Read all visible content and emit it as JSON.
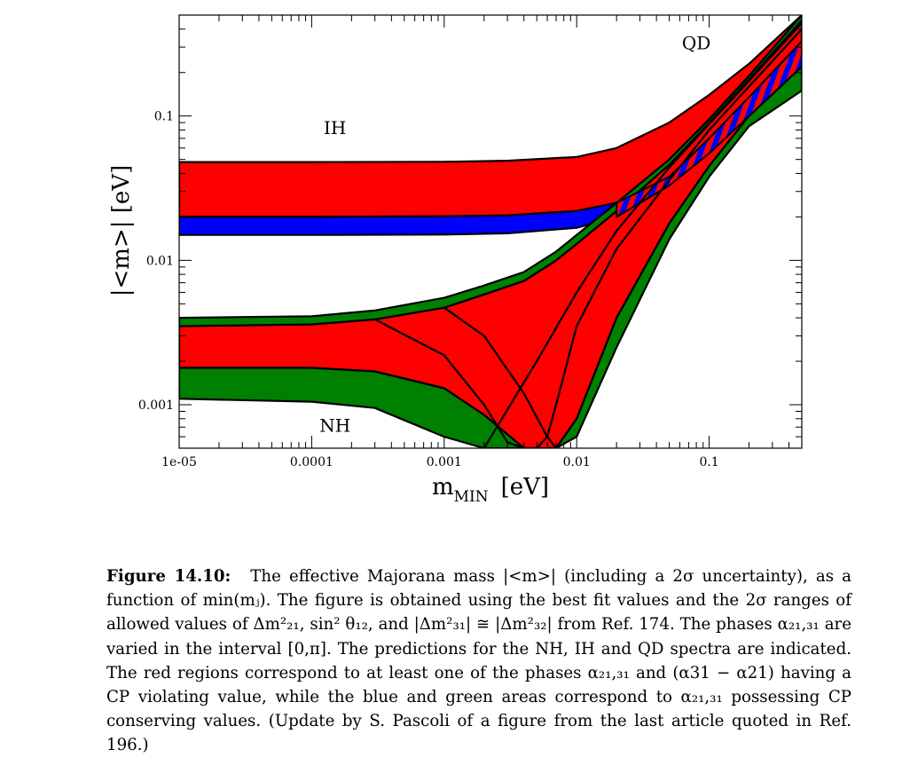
{
  "chart_data": {
    "type": "area",
    "xlabel_main": "m",
    "xlabel_sub": "MIN",
    "xlabel_unit": "[eV]",
    "ylabel": "|<m>|  [eV]",
    "x_scale": "log",
    "y_scale": "log",
    "xlim": [
      1e-05,
      0.5
    ],
    "ylim": [
      0.0005,
      0.5
    ],
    "x_ticks": [
      {
        "value": 1e-05,
        "label": "1e-05"
      },
      {
        "value": 0.0001,
        "label": "0.0001"
      },
      {
        "value": 0.001,
        "label": "0.001"
      },
      {
        "value": 0.01,
        "label": "0.01"
      },
      {
        "value": 0.1,
        "label": "0.1"
      }
    ],
    "y_ticks": [
      {
        "value": 0.001,
        "label": "0.001"
      },
      {
        "value": 0.01,
        "label": "0.01"
      },
      {
        "value": 0.1,
        "label": "0.1"
      }
    ],
    "grid": false,
    "legend": "none",
    "annotations": [
      {
        "text": "IH",
        "x": 0.00015,
        "y": 0.075
      },
      {
        "text": "NH",
        "x": 0.00015,
        "y": 0.00065
      },
      {
        "text": "QD",
        "x": 0.08,
        "y": 0.29
      }
    ],
    "colors": {
      "red": "#ff0000",
      "blue": "#0000ff",
      "green": "#008000",
      "edge": "#000000"
    },
    "series": [
      {
        "color": "red",
        "x": [
          1e-05,
          0.0001,
          0.001,
          0.003,
          0.01,
          0.02,
          0.05,
          0.1,
          0.2,
          0.5
        ],
        "lower": [
          0.02,
          0.02,
          0.0202,
          0.0205,
          0.022,
          0.025,
          0.038,
          0.07,
          0.135,
          0.33
        ],
        "upper": [
          0.048,
          0.048,
          0.0482,
          0.049,
          0.052,
          0.06,
          0.09,
          0.14,
          0.23,
          0.5
        ]
      },
      {
        "color": "blue",
        "x": [
          1e-05,
          0.0001,
          0.001,
          0.003,
          0.01,
          0.02,
          0.05,
          0.1,
          0.2,
          0.5
        ],
        "lower": [
          0.015,
          0.015,
          0.0151,
          0.0154,
          0.0168,
          0.02,
          0.033,
          0.055,
          0.1,
          0.22
        ],
        "upper": [
          0.02,
          0.02,
          0.0202,
          0.0205,
          0.022,
          0.025,
          0.038,
          0.07,
          0.135,
          0.33
        ]
      },
      {
        "color": "red",
        "x": [
          1e-05,
          0.0001,
          0.0003,
          0.001,
          0.002,
          0.004,
          0.007,
          0.01,
          0.02,
          0.05,
          0.1,
          0.2,
          0.5
        ],
        "lower": [
          0.0018,
          0.0018,
          0.0017,
          0.0013,
          0.00085,
          0.0005,
          0.0005,
          0.0008,
          0.004,
          0.018,
          0.045,
          0.1,
          0.3
        ],
        "upper": [
          0.0035,
          0.0036,
          0.0039,
          0.0047,
          0.0058,
          0.0072,
          0.01,
          0.013,
          0.022,
          0.046,
          0.09,
          0.18,
          0.46
        ]
      },
      {
        "color": "green",
        "x": [
          1e-05,
          0.0001,
          0.0003,
          0.001,
          0.002,
          0.004,
          0.007,
          0.01,
          0.02,
          0.05,
          0.1,
          0.2,
          0.5
        ],
        "lower": [
          0.0011,
          0.00105,
          0.00095,
          0.0006,
          0.0005,
          0.0005,
          0.0005,
          0.0006,
          0.0025,
          0.014,
          0.038,
          0.085,
          0.15
        ],
        "upper": [
          0.0018,
          0.0018,
          0.0017,
          0.0013,
          0.00085,
          0.0005,
          0.0005,
          0.0008,
          0.004,
          0.018,
          0.045,
          0.1,
          0.22
        ]
      },
      {
        "color": "green",
        "x": [
          1e-05,
          0.0001,
          0.0003,
          0.001,
          0.002,
          0.004,
          0.007,
          0.01,
          0.02,
          0.05,
          0.1,
          0.2,
          0.5
        ],
        "lower": [
          0.0035,
          0.0036,
          0.0039,
          0.0047,
          0.0058,
          0.0072,
          0.01,
          0.013,
          0.022,
          0.046,
          0.09,
          0.18,
          0.46
        ],
        "upper": [
          0.004,
          0.0041,
          0.0045,
          0.0055,
          0.0067,
          0.0083,
          0.0115,
          0.015,
          0.025,
          0.05,
          0.095,
          0.19,
          0.5
        ]
      }
    ]
  },
  "caption": {
    "lead": "Figure 14.10:",
    "text": "The effective Majorana mass |<m>| (including a 2σ uncertainty), as a function of min(mⱼ). The figure is obtained using the best fit values and the 2σ ranges of allowed values of Δm²₂₁, sin² θ₁₂, and |Δm²₃₁| ≅ |Δm²₃₂| from Ref. 174. The phases α₂₁,₃₁ are varied in the interval [0,π]. The predictions for the NH, IH and QD spectra are indicated. The red regions correspond to at least one of the phases α₂₁,₃₁ and (α31 − α21) having a CP violating value, while the blue and green areas correspond to α₂₁,₃₁ possessing CP conserving values. (Update by S. Pascoli of a figure from the last article quoted in Ref. 196.)"
  }
}
